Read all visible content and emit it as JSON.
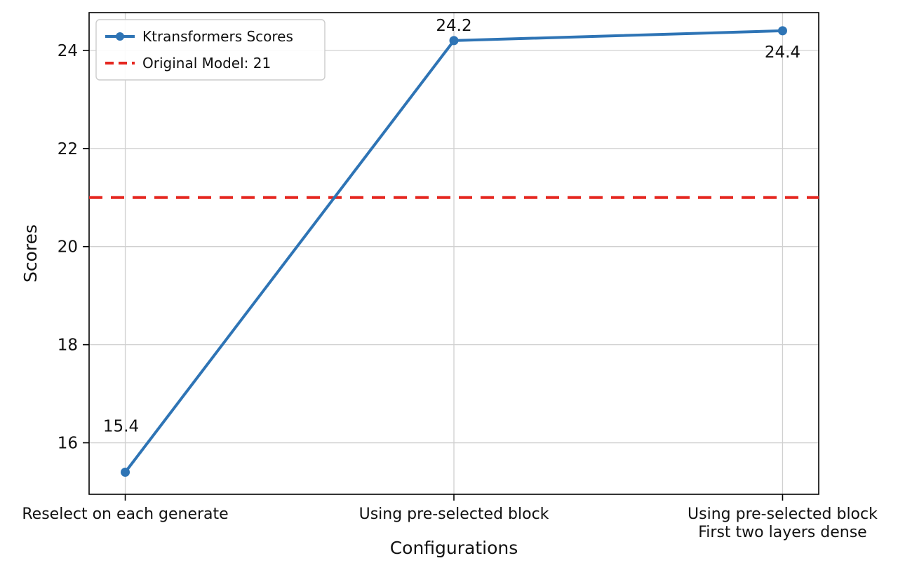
{
  "figure": {
    "background": "#ffffff",
    "grid_color": "#d0d0d0",
    "axis_color": "#000000",
    "text_color": "#111111"
  },
  "chart_data": {
    "type": "line",
    "title": "",
    "xlabel": "Configurations",
    "ylabel": "Scores",
    "categories": [
      "Reselect on each generate",
      "Using pre-selected block",
      "Using pre-selected block\nFirst two layers dense"
    ],
    "series": [
      {
        "name": "Ktransformers Scores",
        "values": [
          15.4,
          24.2,
          24.4
        ],
        "color": "#2e74b5",
        "marker": "circle",
        "line_style": "solid"
      }
    ],
    "reference_line": {
      "label": "Original Model: 21",
      "value": 21,
      "color": "#e5261f",
      "line_style": "dashed"
    },
    "annotations": [
      {
        "text": "15.4",
        "point_index": 0
      },
      {
        "text": "24.2",
        "point_index": 1
      },
      {
        "text": "24.4",
        "point_index": 2
      }
    ],
    "ylim": [
      14.95,
      24.77
    ],
    "yticks": [
      16,
      18,
      20,
      22,
      24
    ],
    "grid": true,
    "legend_position": "upper left"
  }
}
